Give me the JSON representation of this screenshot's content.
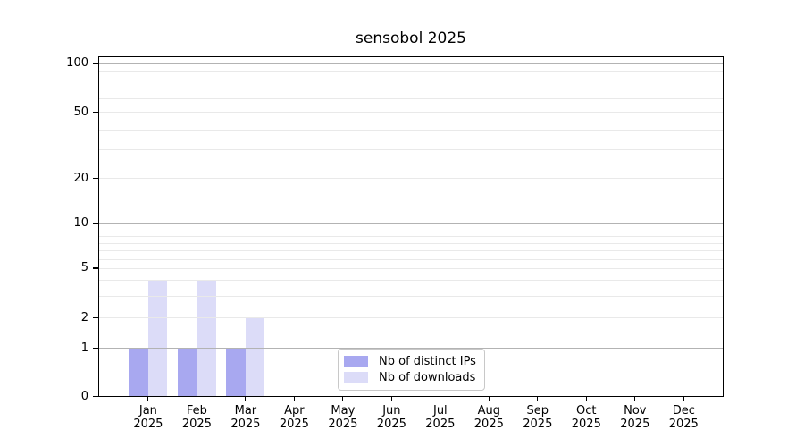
{
  "chart_data": {
    "type": "bar",
    "title": "sensobol 2025",
    "categories": [
      "Jan",
      "Feb",
      "Mar",
      "Apr",
      "May",
      "Jun",
      "Jul",
      "Aug",
      "Sep",
      "Oct",
      "Nov",
      "Dec"
    ],
    "category_year": "2025",
    "series": [
      {
        "name": "Nb of distinct IPs",
        "color": "#a8a8f0",
        "values": [
          1,
          1,
          1,
          0,
          0,
          0,
          0,
          0,
          0,
          0,
          0,
          0
        ]
      },
      {
        "name": "Nb of downloads",
        "color": "#dcdcf8",
        "values": [
          4,
          4,
          2,
          0,
          0,
          0,
          0,
          0,
          0,
          0,
          0,
          0
        ]
      }
    ],
    "y_axis": {
      "tick_labels": [
        "0",
        "1",
        "2",
        "5",
        "10",
        "20",
        "50",
        "100"
      ],
      "tick_values": [
        0,
        1,
        2,
        5,
        10,
        20,
        50,
        100
      ],
      "major_gridline_values": [
        1,
        10,
        100
      ],
      "minor_gridline_values": [
        2,
        3,
        4,
        5,
        6,
        7,
        8,
        9,
        20,
        30,
        40,
        50,
        60,
        70,
        80,
        90
      ],
      "ylim": [
        0,
        110
      ],
      "scale": "log-like"
    },
    "legend": {
      "position": "inside-bottom-center",
      "entries": [
        "Nb of distinct IPs",
        "Nb of downloads"
      ]
    },
    "grid": "on",
    "styles": {
      "major_grid_color": "#b3b3b3",
      "minor_grid_color": "#e9e9e9",
      "axis_color": "#000000",
      "background": "#ffffff"
    }
  }
}
